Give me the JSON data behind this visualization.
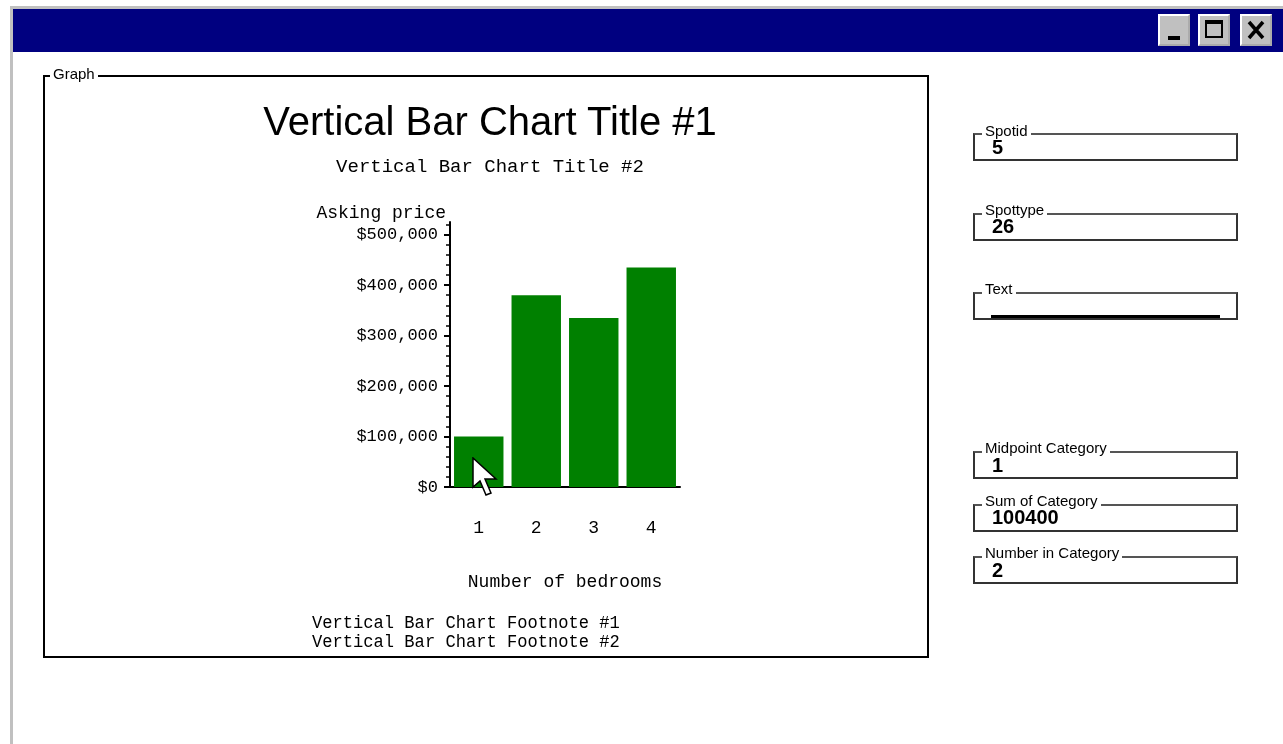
{
  "chart_data": {
    "type": "bar",
    "title": "Vertical Bar Chart Title #1",
    "subtitle": "Vertical Bar Chart Title #2",
    "xlabel": "Number of bedrooms",
    "ylabel": "Asking price",
    "categories": [
      "1",
      "2",
      "3",
      "4"
    ],
    "values": [
      100000,
      380000,
      335000,
      435000
    ],
    "color": "#008000",
    "ylim": [
      0,
      525000
    ],
    "yticks": [
      {
        "value": 0,
        "label": "$0"
      },
      {
        "value": 100000,
        "label": "$100,000"
      },
      {
        "value": 200000,
        "label": "$200,000"
      },
      {
        "value": 300000,
        "label": "$300,000"
      },
      {
        "value": 400000,
        "label": "$400,000"
      },
      {
        "value": 500000,
        "label": "$500,000"
      }
    ],
    "grid": false,
    "annotations": [
      "Graph",
      "Vertical Bar Chart Footnote #1",
      "Vertical Bar Chart Footnote #2",
      "Spotid",
      "5",
      "Spottype",
      "26",
      "Text",
      "Midpoint Category",
      "1",
      "Sum of Category",
      "100400",
      "Number in Category",
      "2"
    ]
  }
}
